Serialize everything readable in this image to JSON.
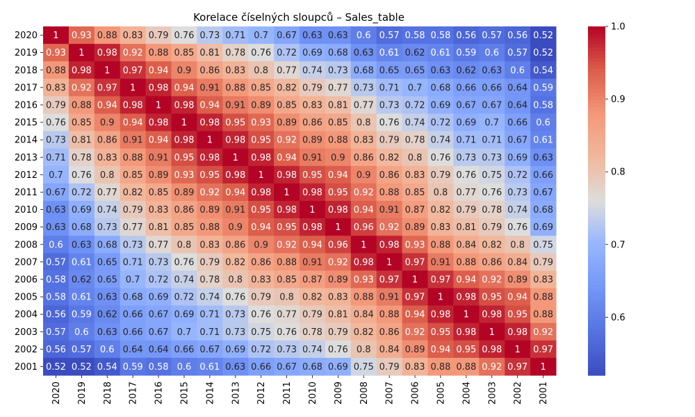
{
  "chart_data": {
    "type": "heatmap",
    "title": "Korelace číselných sloupců – Sales_table",
    "xlabel": "",
    "ylabel": "",
    "row_labels": [
      "2020",
      "2019",
      "2018",
      "2017",
      "2016",
      "2015",
      "2014",
      "2013",
      "2012",
      "2011",
      "2010",
      "2009",
      "2008",
      "2007",
      "2006",
      "2005",
      "2004",
      "2003",
      "2002",
      "2001"
    ],
    "col_labels": [
      "2020",
      "2019",
      "2018",
      "2017",
      "2016",
      "2015",
      "2014",
      "2013",
      "2012",
      "2011",
      "2010",
      "2009",
      "2008",
      "2007",
      "2006",
      "2005",
      "2004",
      "2003",
      "2002",
      "2001"
    ],
    "values": [
      [
        1,
        0.93,
        0.88,
        0.83,
        0.79,
        0.76,
        0.73,
        0.71,
        0.7,
        0.67,
        0.63,
        0.63,
        0.6,
        0.57,
        0.58,
        0.58,
        0.56,
        0.57,
        0.56,
        0.52
      ],
      [
        0.93,
        1,
        0.98,
        0.92,
        0.88,
        0.85,
        0.81,
        0.78,
        0.76,
        0.72,
        0.69,
        0.68,
        0.63,
        0.61,
        0.62,
        0.61,
        0.59,
        0.6,
        0.57,
        0.52
      ],
      [
        0.88,
        0.98,
        1,
        0.97,
        0.94,
        0.9,
        0.86,
        0.83,
        0.8,
        0.77,
        0.74,
        0.73,
        0.68,
        0.65,
        0.65,
        0.63,
        0.62,
        0.63,
        0.6,
        0.54
      ],
      [
        0.83,
        0.92,
        0.97,
        1,
        0.98,
        0.94,
        0.91,
        0.88,
        0.85,
        0.82,
        0.79,
        0.77,
        0.73,
        0.71,
        0.7,
        0.68,
        0.66,
        0.66,
        0.64,
        0.59
      ],
      [
        0.79,
        0.88,
        0.94,
        0.98,
        1,
        0.98,
        0.94,
        0.91,
        0.89,
        0.85,
        0.83,
        0.81,
        0.77,
        0.73,
        0.72,
        0.69,
        0.67,
        0.67,
        0.64,
        0.58
      ],
      [
        0.76,
        0.85,
        0.9,
        0.94,
        0.98,
        1,
        0.98,
        0.95,
        0.93,
        0.89,
        0.86,
        0.85,
        0.8,
        0.76,
        0.74,
        0.72,
        0.69,
        0.7,
        0.66,
        0.6
      ],
      [
        0.73,
        0.81,
        0.86,
        0.91,
        0.94,
        0.98,
        1,
        0.98,
        0.95,
        0.92,
        0.89,
        0.88,
        0.83,
        0.79,
        0.78,
        0.74,
        0.71,
        0.71,
        0.67,
        0.61
      ],
      [
        0.71,
        0.78,
        0.83,
        0.88,
        0.91,
        0.95,
        0.98,
        1,
        0.98,
        0.94,
        0.91,
        0.9,
        0.86,
        0.82,
        0.8,
        0.76,
        0.73,
        0.73,
        0.69,
        0.63
      ],
      [
        0.7,
        0.76,
        0.8,
        0.85,
        0.89,
        0.93,
        0.95,
        0.98,
        1,
        0.98,
        0.95,
        0.94,
        0.9,
        0.86,
        0.83,
        0.79,
        0.76,
        0.75,
        0.72,
        0.66
      ],
      [
        0.67,
        0.72,
        0.77,
        0.82,
        0.85,
        0.89,
        0.92,
        0.94,
        0.98,
        1,
        0.98,
        0.95,
        0.92,
        0.88,
        0.85,
        0.8,
        0.77,
        0.76,
        0.73,
        0.67
      ],
      [
        0.63,
        0.69,
        0.74,
        0.79,
        0.83,
        0.86,
        0.89,
        0.91,
        0.95,
        0.98,
        1,
        0.98,
        0.94,
        0.91,
        0.87,
        0.82,
        0.79,
        0.78,
        0.74,
        0.68
      ],
      [
        0.63,
        0.68,
        0.73,
        0.77,
        0.81,
        0.85,
        0.88,
        0.9,
        0.94,
        0.95,
        0.98,
        1,
        0.96,
        0.92,
        0.89,
        0.83,
        0.81,
        0.79,
        0.76,
        0.69
      ],
      [
        0.6,
        0.63,
        0.68,
        0.73,
        0.77,
        0.8,
        0.83,
        0.86,
        0.9,
        0.92,
        0.94,
        0.96,
        1,
        0.98,
        0.93,
        0.88,
        0.84,
        0.82,
        0.8,
        0.75
      ],
      [
        0.57,
        0.61,
        0.65,
        0.71,
        0.73,
        0.76,
        0.79,
        0.82,
        0.86,
        0.88,
        0.91,
        0.92,
        0.98,
        1,
        0.97,
        0.91,
        0.88,
        0.86,
        0.84,
        0.79
      ],
      [
        0.58,
        0.62,
        0.65,
        0.7,
        0.72,
        0.74,
        0.78,
        0.8,
        0.83,
        0.85,
        0.87,
        0.89,
        0.93,
        0.97,
        1,
        0.97,
        0.94,
        0.92,
        0.89,
        0.83
      ],
      [
        0.58,
        0.61,
        0.63,
        0.68,
        0.69,
        0.72,
        0.74,
        0.76,
        0.79,
        0.8,
        0.82,
        0.83,
        0.88,
        0.91,
        0.97,
        1,
        0.98,
        0.95,
        0.94,
        0.88
      ],
      [
        0.56,
        0.59,
        0.62,
        0.66,
        0.67,
        0.69,
        0.71,
        0.73,
        0.76,
        0.77,
        0.79,
        0.81,
        0.84,
        0.88,
        0.94,
        0.98,
        1,
        0.98,
        0.95,
        0.88
      ],
      [
        0.57,
        0.6,
        0.63,
        0.66,
        0.67,
        0.7,
        0.71,
        0.73,
        0.75,
        0.76,
        0.78,
        0.79,
        0.82,
        0.86,
        0.92,
        0.95,
        0.98,
        1,
        0.98,
        0.92
      ],
      [
        0.56,
        0.57,
        0.6,
        0.64,
        0.64,
        0.66,
        0.67,
        0.69,
        0.72,
        0.73,
        0.74,
        0.76,
        0.8,
        0.84,
        0.89,
        0.94,
        0.95,
        0.98,
        1,
        0.97
      ],
      [
        0.52,
        0.52,
        0.54,
        0.59,
        0.58,
        0.6,
        0.61,
        0.63,
        0.66,
        0.67,
        0.68,
        0.69,
        0.75,
        0.79,
        0.83,
        0.88,
        0.88,
        0.92,
        0.97,
        1
      ]
    ],
    "colormap": "coolwarm",
    "vmin": 0.52,
    "vmax": 1.0,
    "colorbar_ticks": [
      0.6,
      0.7,
      0.8,
      0.9,
      1.0
    ],
    "colorbar_tick_labels": [
      "0.6",
      "0.7",
      "0.8",
      "0.9",
      "1.0"
    ],
    "annotations": true,
    "grid": false
  }
}
